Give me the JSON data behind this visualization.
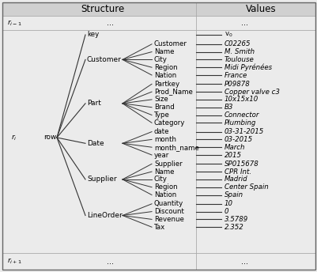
{
  "title_structure": "Structure",
  "title_values": "Values",
  "bg_color": "#ebebeb",
  "header_bg": "#d8d8d8",
  "border_color": "#555555",
  "line_color": "#333333",
  "row_label_ri": "r$_{i}$",
  "row_label_ri_minus": "r$_{i-1}$",
  "row_label_ri_plus": "r$_{i+1}$",
  "key_label": "key",
  "key_value": "v$_{0}$",
  "row_node": "row",
  "groups": [
    {
      "name": "Customer",
      "fields": [
        {
          "label": "Customer",
          "value": "C02265"
        },
        {
          "label": "Name",
          "value": "M. Smith"
        },
        {
          "label": "City",
          "value": "Toulouse"
        },
        {
          "label": "Region",
          "value": "Midi Pyrénées"
        },
        {
          "label": "Nation",
          "value": "France"
        }
      ]
    },
    {
      "name": "Part",
      "fields": [
        {
          "label": "Partkey",
          "value": "P09878"
        },
        {
          "label": "Prod_Name",
          "value": "Copper valve c3"
        },
        {
          "label": "Size",
          "value": "10x15x10"
        },
        {
          "label": "Brand",
          "value": "B3"
        },
        {
          "label": "Type",
          "value": "Connector"
        },
        {
          "label": "Category",
          "value": "Plumbing"
        }
      ]
    },
    {
      "name": "Date",
      "fields": [
        {
          "label": "date",
          "value": "03-31-2015"
        },
        {
          "label": "month",
          "value": "03-2015"
        },
        {
          "label": "month_name",
          "value": "March"
        },
        {
          "label": "year",
          "value": "2015"
        }
      ]
    },
    {
      "name": "Supplier",
      "fields": [
        {
          "label": "Supplier",
          "value": "SP015678"
        },
        {
          "label": "Name",
          "value": "CPR Int."
        },
        {
          "label": "City",
          "value": "Madrid"
        },
        {
          "label": "Region",
          "value": "Center Spain"
        },
        {
          "label": "Nation",
          "value": "Spain"
        }
      ]
    },
    {
      "name": "LineOrder",
      "fields": [
        {
          "label": "Quantity",
          "value": "10"
        },
        {
          "label": "Discount",
          "value": "0"
        },
        {
          "label": "Revenue",
          "value": "3.5789"
        },
        {
          "label": "Tax",
          "value": "2.352"
        }
      ]
    }
  ]
}
